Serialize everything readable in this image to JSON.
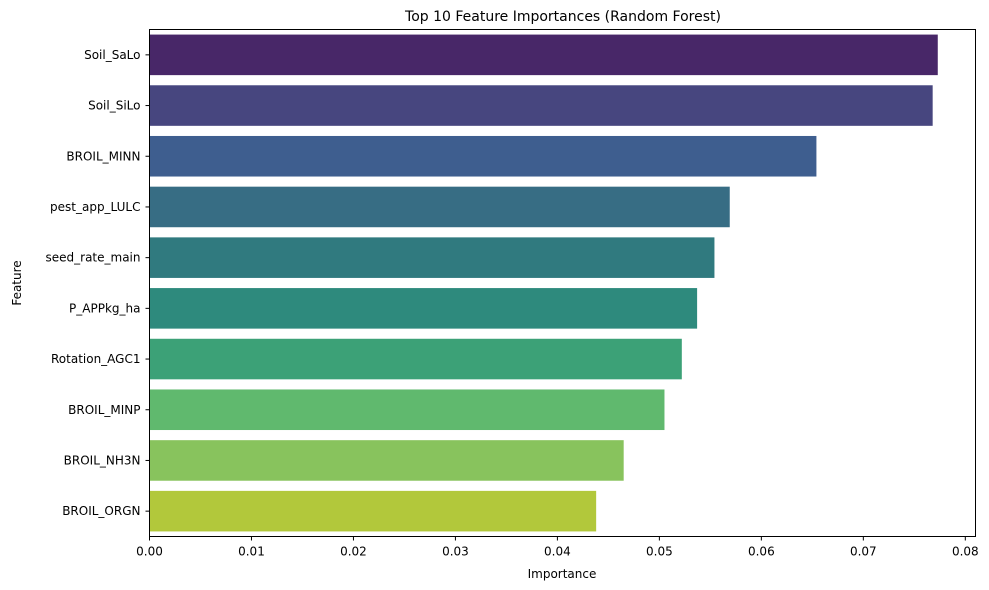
{
  "chart_data": {
    "type": "bar",
    "orientation": "horizontal",
    "title": "Top 10 Feature Importances (Random Forest)",
    "xlabel": "Importance",
    "ylabel": "Feature",
    "categories": [
      "Soil_SaLo",
      "Soil_SiLo",
      "BROIL_MINN",
      "pest_app_LULC",
      "seed_rate_main",
      "P_APPkg_ha",
      "Rotation_AGC1",
      "BROIL_MINP",
      "BROIL_NH3N",
      "BROIL_ORGN"
    ],
    "values": [
      0.0773,
      0.0768,
      0.0654,
      0.0569,
      0.0554,
      0.0537,
      0.0522,
      0.0505,
      0.0465,
      0.0438
    ],
    "colors": [
      "#482768",
      "#47467f",
      "#3e5e8f",
      "#376d84",
      "#307a7f",
      "#2e8a7d",
      "#3ca177",
      "#60b96e",
      "#88c35d",
      "#b2c83b"
    ],
    "xlim": [
      0,
      0.081
    ],
    "xticks": [
      0.0,
      0.01,
      0.02,
      0.03,
      0.04,
      0.05,
      0.06,
      0.07,
      0.08
    ],
    "xtick_labels": [
      "0.00",
      "0.01",
      "0.02",
      "0.03",
      "0.04",
      "0.05",
      "0.06",
      "0.07",
      "0.08"
    ],
    "grid": false,
    "legend": "none"
  }
}
